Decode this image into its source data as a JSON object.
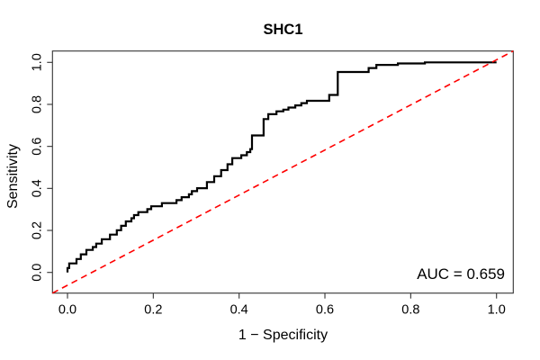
{
  "figure": {
    "title": "SHC1",
    "xlabel": "1 − Specificity",
    "ylabel": "Sensitivity",
    "annotation": "AUC = 0.659"
  },
  "chart_data": {
    "type": "line",
    "subtype": "roc-step-curve",
    "title": "SHC1",
    "xlabel": "1 − Specificity",
    "ylabel": "Sensitivity",
    "xlim": [
      0,
      1
    ],
    "ylim": [
      0,
      1
    ],
    "grid": false,
    "auc": 0.659,
    "annotation": "AUC = 0.659",
    "x_ticks": [
      0.0,
      0.2,
      0.4,
      0.6,
      0.8,
      1.0
    ],
    "y_ticks": [
      0.0,
      0.2,
      0.4,
      0.6,
      0.8,
      1.0
    ],
    "x_tick_labels": [
      "0.0",
      "0.2",
      "0.4",
      "0.6",
      "0.8",
      "1.0"
    ],
    "y_tick_labels": [
      "0.0",
      "0.2",
      "0.4",
      "0.6",
      "0.8",
      "1.0"
    ],
    "series": [
      {
        "name": "ROC curve",
        "color": "#000000",
        "style": "solid",
        "line_width": 2.2,
        "points": [
          [
            0.0,
            0.021
          ],
          [
            0.004,
            0.043
          ],
          [
            0.021,
            0.064
          ],
          [
            0.031,
            0.086
          ],
          [
            0.044,
            0.107
          ],
          [
            0.059,
            0.121
          ],
          [
            0.067,
            0.137
          ],
          [
            0.08,
            0.158
          ],
          [
            0.099,
            0.18
          ],
          [
            0.115,
            0.201
          ],
          [
            0.125,
            0.222
          ],
          [
            0.136,
            0.243
          ],
          [
            0.149,
            0.258
          ],
          [
            0.155,
            0.273
          ],
          [
            0.165,
            0.287
          ],
          [
            0.186,
            0.301
          ],
          [
            0.195,
            0.315
          ],
          [
            0.22,
            0.33
          ],
          [
            0.254,
            0.344
          ],
          [
            0.266,
            0.358
          ],
          [
            0.283,
            0.372
          ],
          [
            0.29,
            0.387
          ],
          [
            0.302,
            0.401
          ],
          [
            0.325,
            0.43
          ],
          [
            0.342,
            0.458
          ],
          [
            0.358,
            0.487
          ],
          [
            0.373,
            0.515
          ],
          [
            0.384,
            0.544
          ],
          [
            0.405,
            0.558
          ],
          [
            0.418,
            0.573
          ],
          [
            0.426,
            0.587
          ],
          [
            0.43,
            0.652
          ],
          [
            0.457,
            0.73
          ],
          [
            0.468,
            0.753
          ],
          [
            0.487,
            0.767
          ],
          [
            0.503,
            0.775
          ],
          [
            0.515,
            0.785
          ],
          [
            0.531,
            0.795
          ],
          [
            0.545,
            0.806
          ],
          [
            0.558,
            0.817
          ],
          [
            0.61,
            0.845
          ],
          [
            0.63,
            0.954
          ],
          [
            0.702,
            0.973
          ],
          [
            0.72,
            0.988
          ],
          [
            0.77,
            0.995
          ],
          [
            0.833,
            1.0
          ],
          [
            1.0,
            1.0
          ]
        ]
      },
      {
        "name": "Chance line",
        "color": "#FF0000",
        "style": "dashed",
        "line_width": 1.6,
        "points": [
          [
            0,
            0
          ],
          [
            1,
            1
          ]
        ]
      }
    ]
  },
  "colors": {
    "curve": "#000000",
    "diagonal": "#FF0000",
    "axis": "#333333",
    "text": "#000000",
    "background": "#FFFFFF"
  }
}
